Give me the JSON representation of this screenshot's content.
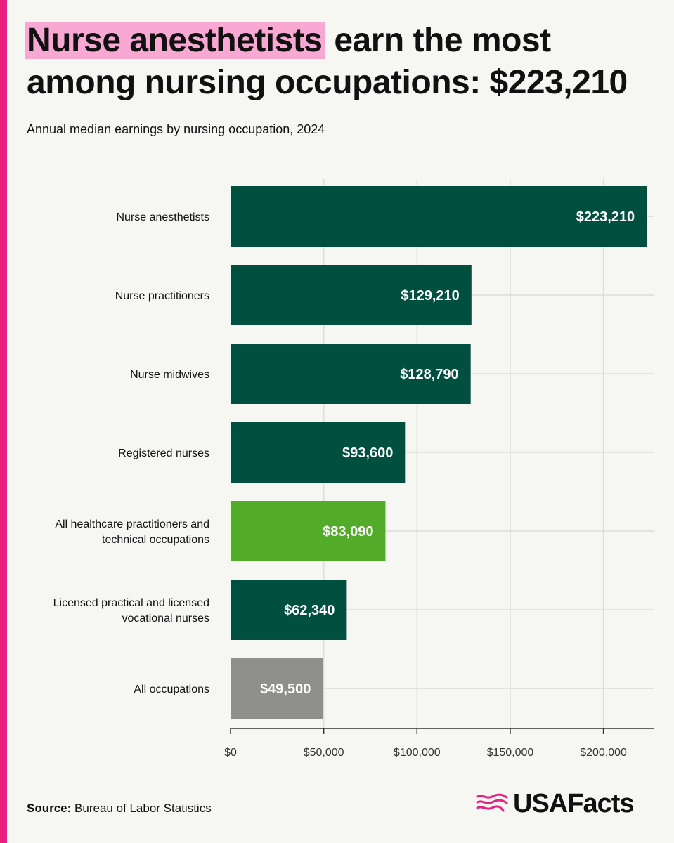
{
  "title": {
    "highlight": "Nurse anesthetists",
    "rest": "earn the most among nursing occupations: $223,210"
  },
  "subtitle": "Annual median earnings by nursing occupation, 2024",
  "source": {
    "label": "Source:",
    "text": "Bureau of Labor Statistics"
  },
  "brand": {
    "name": "USAFacts",
    "logo_icon": "usafacts-flag-icon"
  },
  "colors": {
    "accent": "#e8207f",
    "highlight": "#f9a8d4",
    "bar_default": "#004f3f",
    "bar_highlight": "#52ab29",
    "bar_neutral": "#8f8f8b",
    "grid": "#dcdcd8",
    "axis": "#333333"
  },
  "chart_data": {
    "type": "bar",
    "orientation": "horizontal",
    "title": "",
    "xlabel": "",
    "ylabel": "",
    "xlim": [
      0,
      225000
    ],
    "ticks": [
      0,
      50000,
      100000,
      150000,
      200000
    ],
    "tick_labels": [
      "$0",
      "$50,000",
      "$100,000",
      "$150,000",
      "$200,000"
    ],
    "grid": true,
    "categories": [
      "Nurse anesthetists",
      "Nurse practitioners",
      "Nurse midwives",
      "Registered nurses",
      "All healthcare practitioners and technical occupations",
      "Licensed practical and licensed vocational nurses",
      "All occupations"
    ],
    "category_lines": [
      [
        "Nurse anesthetists"
      ],
      [
        "Nurse practitioners"
      ],
      [
        "Nurse midwives"
      ],
      [
        "Registered nurses"
      ],
      [
        "All healthcare practitioners and",
        "technical occupations"
      ],
      [
        "Licensed practical and licensed",
        "vocational nurses"
      ],
      [
        "All occupations"
      ]
    ],
    "values": [
      223210,
      129210,
      128790,
      93600,
      83090,
      62340,
      49500
    ],
    "value_labels": [
      "$223,210",
      "$129,210",
      "$128,790",
      "$93,600",
      "$83,090",
      "$62,340",
      "$49,500"
    ],
    "bar_colors": [
      "#004f3f",
      "#004f3f",
      "#004f3f",
      "#004f3f",
      "#52ab29",
      "#004f3f",
      "#8f8f8b"
    ]
  }
}
